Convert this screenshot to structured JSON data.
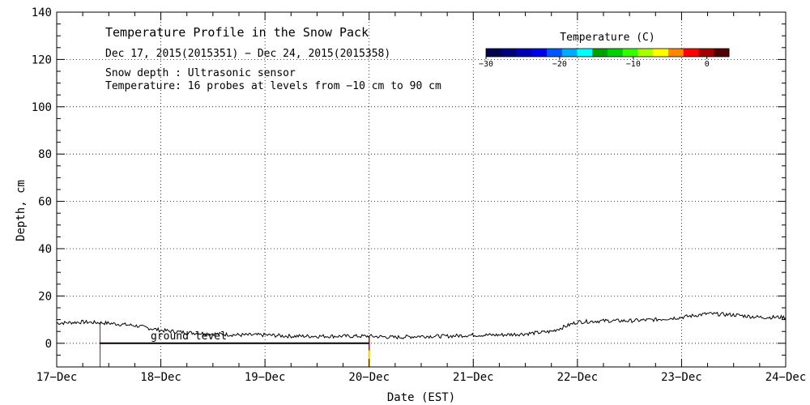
{
  "chart_data": {
    "type": "line",
    "title": "Temperature Profile in the Snow Pack",
    "subtitle": "Dec 17, 2015(2015351) − Dec 24, 2015(2015358)",
    "annotations": [
      "Snow depth : Ultrasonic sensor",
      "Temperature: 16 probes at levels from −10 cm to 90 cm"
    ],
    "ground_label": "ground level",
    "xlabel": "Date (EST)",
    "ylabel": "Depth, cm",
    "xlim": [
      "2015-12-17",
      "2015-12-24"
    ],
    "ylim": [
      -10,
      140
    ],
    "x_ticks": [
      "17−Dec",
      "18−Dec",
      "19−Dec",
      "20−Dec",
      "21−Dec",
      "22−Dec",
      "23−Dec",
      "24−Dec"
    ],
    "y_ticks": [
      "0",
      "20",
      "40",
      "60",
      "80",
      "100",
      "120",
      "140"
    ],
    "grid": true,
    "colorbar": {
      "title": "Temperature (C)",
      "ticks": [
        "−30",
        "−20",
        "−10",
        "0"
      ],
      "range": [
        -30,
        3
      ],
      "colors": [
        "#00004d",
        "#00007a",
        "#0000b0",
        "#0000e6",
        "#0055ff",
        "#00aaff",
        "#00ffff",
        "#00a000",
        "#00d000",
        "#33ff00",
        "#aaff00",
        "#ffff00",
        "#ff8800",
        "#ff0000",
        "#a00000",
        "#500000"
      ]
    },
    "series": [
      {
        "x": [
          "2015-12-17 00:00",
          "2015-12-17 06:00",
          "2015-12-17 12:00",
          "2015-12-17 18:00",
          "2015-12-18 00:00",
          "2015-12-18 06:00",
          "2015-12-18 12:00",
          "2015-12-18 18:00",
          "2015-12-19 00:00",
          "2015-12-19 06:00",
          "2015-12-19 12:00",
          "2015-12-19 18:00",
          "2015-12-20 00:00",
          "2015-12-20 06:00",
          "2015-12-20 12:00",
          "2015-12-20 18:00",
          "2015-12-21 00:00",
          "2015-12-21 06:00",
          "2015-12-21 12:00",
          "2015-12-21 18:00",
          "2015-12-22 00:00",
          "2015-12-22 06:00",
          "2015-12-22 12:00",
          "2015-12-22 18:00",
          "2015-12-23 00:00",
          "2015-12-23 06:00",
          "2015-12-23 12:00",
          "2015-12-23 18:00",
          "2015-12-24 00:00"
        ],
        "y": [
          8.5,
          9,
          8.5,
          7.5,
          5.5,
          4.5,
          4,
          3.5,
          3.5,
          3,
          3,
          3,
          3,
          2.5,
          3,
          3,
          3.5,
          3.5,
          4,
          5,
          9,
          9.5,
          9.5,
          10,
          11,
          12.5,
          12,
          11,
          11
        ]
      }
    ]
  }
}
